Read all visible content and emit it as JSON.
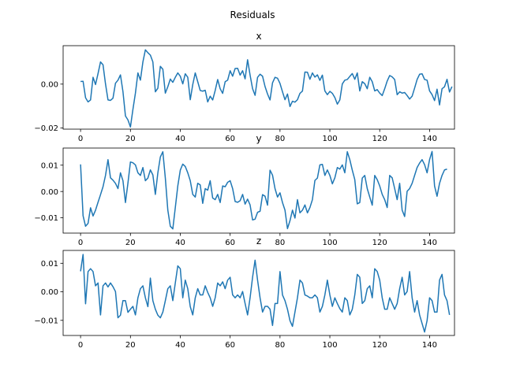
{
  "figure": {
    "suptitle": "Residuals",
    "line_color": "#1f77b4"
  },
  "chart_data": [
    {
      "type": "line",
      "title": "x",
      "xlabel": "",
      "ylabel": "",
      "xlim": [
        -7,
        150
      ],
      "ylim": [
        -0.0205,
        0.0175
      ],
      "xticks": [
        0,
        20,
        40,
        60,
        80,
        100,
        120,
        140
      ],
      "xtick_labels": [
        "0",
        "20",
        "40",
        "60",
        "80",
        "100",
        "120",
        "140"
      ],
      "yticks": [
        -0.02,
        0.0
      ],
      "ytick_labels": [
        "−0.02",
        "0.00"
      ],
      "grid": false,
      "series": [
        {
          "values": [
            0.0012,
            0.0013,
            -0.0062,
            -0.0081,
            -0.0072,
            0.0031,
            -0.0002,
            0.0048,
            0.0101,
            0.0088,
            0.0001,
            -0.0072,
            -0.0074,
            -0.0064,
            0.0004,
            0.0018,
            0.0042,
            -0.0034,
            -0.0145,
            -0.0163,
            -0.0195,
            -0.0115,
            -0.0041,
            0.0051,
            0.0018,
            0.0101,
            0.0156,
            0.0143,
            0.0132,
            0.0101,
            -0.0035,
            -0.0019,
            0.0081,
            0.0068,
            -0.0041,
            -0.0012,
            0.0023,
            0.0008,
            0.0031,
            0.0051,
            0.0036,
            0.0001,
            0.0047,
            0.0031,
            -0.0071,
            -0.0002,
            0.0051,
            0.0011,
            -0.0029,
            -0.0032,
            -0.0028,
            -0.0081,
            -0.0055,
            -0.0072,
            -0.0029,
            0.0021,
            -0.0021,
            -0.0042,
            0.0011,
            0.0018,
            0.0061,
            0.0036,
            0.0071,
            0.0072,
            0.0041,
            0.0061,
            0.0024,
            0.0111,
            0.0041,
            -0.0021,
            -0.0051,
            0.0031,
            0.0045,
            0.0036,
            -0.0011,
            -0.0045,
            -0.0072,
            0.0006,
            0.0031,
            0.0027,
            0.0003,
            -0.0035,
            -0.0071,
            -0.0045,
            -0.0102,
            -0.0078,
            -0.0082,
            -0.0071,
            -0.0042,
            -0.0032,
            0.0055,
            0.0054,
            0.0022,
            0.0051,
            0.0032,
            0.0042,
            0.0017,
            0.0041,
            -0.0031,
            -0.0048,
            -0.0033,
            -0.0042,
            -0.0061,
            -0.0091,
            -0.0072,
            0.0001,
            0.0018,
            0.0021,
            0.0035,
            0.0048,
            0.0022,
            0.0051,
            -0.0031,
            0.0011,
            0.0002,
            -0.0021,
            0.0031,
            0.0011,
            -0.0031,
            -0.0025,
            -0.0041,
            -0.0052,
            -0.0021,
            0.0014,
            0.0039,
            0.0033,
            0.0021,
            -0.0048,
            -0.0035,
            -0.0041,
            -0.0038,
            -0.0052,
            -0.0068,
            -0.0055,
            -0.0018,
            0.0021,
            0.0045,
            0.0047,
            0.0021,
            0.0018,
            -0.0031,
            -0.0048,
            -0.0075,
            -0.0023,
            -0.0095,
            -0.0021,
            -0.0012,
            0.0022,
            -0.0036,
            -0.0011
          ]
        }
      ]
    },
    {
      "type": "line",
      "title": "y",
      "xlabel": "",
      "ylabel": "",
      "xlim": [
        -7,
        150
      ],
      "ylim": [
        -0.0158,
        0.0165
      ],
      "xticks": [
        0,
        20,
        40,
        60,
        80,
        100,
        120,
        140
      ],
      "xtick_labels": [
        "0",
        "20",
        "40",
        "60",
        "80",
        "100",
        "120",
        "140"
      ],
      "yticks": [
        -0.01,
        0.0,
        0.01
      ],
      "ytick_labels": [
        "−0.01",
        "0.00",
        "0.01"
      ],
      "grid": false,
      "series": [
        {
          "values": [
            0.0103,
            -0.0092,
            -0.0132,
            -0.0121,
            -0.0062,
            -0.0093,
            -0.0071,
            -0.0041,
            -0.0012,
            0.0018,
            0.0061,
            0.0121,
            0.0052,
            0.0043,
            0.0031,
            0.0011,
            0.0071,
            0.0041,
            -0.0042,
            0.0032,
            0.0112,
            0.0109,
            0.0101,
            0.0071,
            0.0061,
            0.0091,
            0.0041,
            0.0051,
            0.0082,
            0.0063,
            -0.0011,
            0.0071,
            0.0131,
            0.0151,
            0.0051,
            -0.0071,
            -0.0132,
            -0.0142,
            -0.0061,
            0.0021,
            0.0081,
            0.0104,
            0.0095,
            0.0071,
            0.0041,
            -0.0011,
            -0.0021,
            0.0031,
            0.0025,
            -0.0045,
            0.0011,
            0.0005,
            0.0041,
            -0.0025,
            -0.0031,
            -0.0011,
            -0.0042,
            0.0021,
            0.0018,
            0.0035,
            0.0041,
            0.0011,
            -0.0038,
            -0.0041,
            -0.0035,
            -0.0011,
            -0.0048,
            -0.0029,
            -0.0051,
            -0.0108,
            -0.0105,
            -0.0079,
            -0.0075,
            -0.0012,
            -0.0018,
            -0.0052,
            0.0081,
            0.0062,
            0.0011,
            -0.0021,
            -0.0005,
            -0.0042,
            -0.0071,
            -0.0141,
            -0.0111,
            -0.0071,
            -0.0101,
            -0.0031,
            -0.0081,
            -0.0071,
            -0.0051,
            -0.0081,
            -0.0061,
            -0.0031,
            0.0042,
            0.0051,
            0.0101,
            0.0103,
            0.0061,
            0.0082,
            0.0061,
            0.0029,
            0.0052,
            0.0091,
            0.0085,
            0.0101,
            0.0071,
            0.0151,
            0.0121,
            0.0081,
            0.0045,
            -0.0047,
            -0.0042,
            0.0051,
            0.0061,
            0.0011,
            -0.0021,
            -0.0052,
            0.0061,
            0.0045,
            0.0021,
            -0.0011,
            -0.0031,
            -0.0061,
            0.0061,
            0.0052,
            0.0011,
            -0.0031,
            0.0031,
            -0.0071,
            -0.0095,
            0.0001,
            0.0011,
            0.0031,
            0.0061,
            0.0091,
            0.0108,
            0.0121,
            0.0102,
            0.0071,
            0.0121,
            0.0152,
            0.0021,
            -0.0018,
            0.0031,
            0.0061,
            0.0082,
            0.0085
          ]
        }
      ]
    },
    {
      "type": "line",
      "title": "z",
      "xlabel": "",
      "ylabel": "",
      "xlim": [
        -7,
        150
      ],
      "ylim": [
        -0.0153,
        0.0145
      ],
      "xticks": [
        0,
        20,
        40,
        60,
        80,
        100,
        120,
        140
      ],
      "xtick_labels": [
        "0",
        "20",
        "40",
        "60",
        "80",
        "100",
        "120",
        "140"
      ],
      "yticks": [
        -0.01,
        0.0,
        0.01
      ],
      "ytick_labels": [
        "−0.01",
        "0.00",
        "0.01"
      ],
      "grid": false,
      "series": [
        {
          "values": [
            0.0072,
            0.0131,
            -0.0042,
            0.0071,
            0.0081,
            0.0071,
            0.0021,
            0.0031,
            -0.0081,
            0.0021,
            0.0031,
            0.0017,
            0.0031,
            0.0018,
            0.0001,
            -0.0091,
            -0.0082,
            -0.0031,
            -0.0031,
            -0.0072,
            -0.0061,
            -0.0051,
            -0.0081,
            -0.0021,
            0.0011,
            0.0021,
            -0.0021,
            -0.0052,
            0.0048,
            -0.0031,
            -0.0061,
            -0.0082,
            -0.0091,
            -0.0071,
            -0.0031,
            0.0011,
            0.0021,
            -0.0031,
            0.0031,
            0.0091,
            0.0081,
            -0.0021,
            0.0041,
            0.0011,
            -0.0052,
            -0.0081,
            -0.0021,
            0.0011,
            -0.0011,
            -0.0011,
            0.0021,
            -0.0002,
            -0.0021,
            -0.0051,
            -0.0021,
            0.0031,
            0.0021,
            0.0035,
            0.0011,
            0.0041,
            0.0051,
            -0.0011,
            -0.0021,
            -0.0011,
            -0.0021,
            0.0001,
            -0.0041,
            -0.0081,
            -0.0021,
            0.0051,
            0.0111,
            0.0041,
            -0.0021,
            -0.0071,
            -0.0051,
            -0.0051,
            -0.0061,
            -0.0118,
            -0.0041,
            -0.0041,
            0.0071,
            -0.0011,
            -0.0031,
            -0.0061,
            -0.0101,
            -0.0121,
            -0.0071,
            -0.0021,
            0.0041,
            0.0031,
            -0.0011,
            -0.0015,
            -0.0021,
            -0.0021,
            -0.0011,
            -0.0021,
            -0.0071,
            -0.0051,
            -0.0011,
            0.0041,
            -0.0011,
            -0.0051,
            -0.0021,
            -0.0041,
            -0.0059,
            -0.0071,
            -0.0021,
            -0.0031,
            -0.0081,
            -0.0061,
            -0.0011,
            0.0061,
            0.0051,
            -0.0041,
            -0.0031,
            0.0011,
            0.0021,
            -0.0021,
            0.0081,
            0.0071,
            0.0041,
            -0.0021,
            -0.0061,
            -0.0061,
            -0.0021,
            -0.0041,
            -0.0061,
            -0.0041,
            0.0011,
            0.0051,
            -0.0011,
            0.0001,
            0.0071,
            -0.0021,
            -0.0071,
            -0.0031,
            -0.0081,
            -0.0111,
            -0.0141,
            -0.0101,
            -0.0021,
            -0.0031,
            -0.0071,
            -0.0071,
            0.0041,
            0.0061,
            -0.0011,
            -0.0031,
            -0.0081
          ]
        }
      ]
    }
  ]
}
